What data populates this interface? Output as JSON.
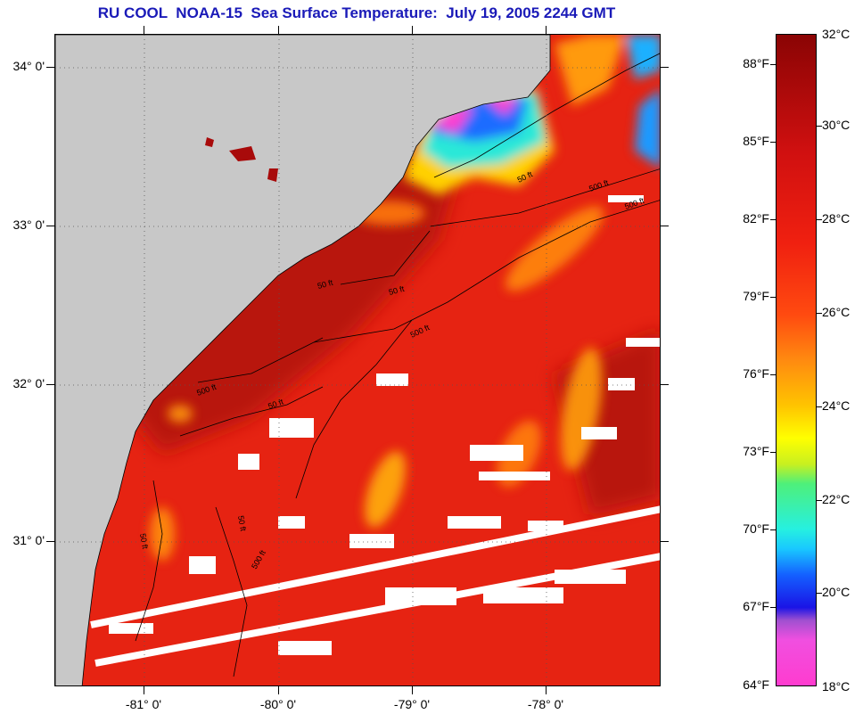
{
  "title": "RU COOL  NOAA-15  Sea Surface Temperature:  July 19, 2005 2244 GMT",
  "map": {
    "latitude_labels": [
      "34° 0'",
      "33° 0'",
      "32° 0'",
      "31° 0'"
    ],
    "longitude_labels": [
      "-81° 0'",
      "-80° 0'",
      "-79° 0'",
      "-78° 0'"
    ],
    "isobath_labels": [
      "50 ft",
      "500 ft",
      "500 ft",
      "50 ft",
      "50 ft",
      "500 ft",
      "500 ft",
      "50 ft",
      "50 ft",
      "500 ft",
      "50 ft"
    ]
  },
  "colorbar": {
    "fahrenheit_labels": [
      "88°F",
      "85°F",
      "82°F",
      "79°F",
      "76°F",
      "73°F",
      "70°F",
      "67°F",
      "64°F"
    ],
    "celsius_labels": [
      "32°C",
      "30°C",
      "28°C",
      "26°C",
      "24°C",
      "22°C",
      "20°C",
      "18°C"
    ]
  },
  "colors": {
    "title": "#1a1ab8",
    "land": "#c8c8c8",
    "warm": "#e62312",
    "hot": "#a80a0a",
    "cold": "#1aa0ff"
  }
}
